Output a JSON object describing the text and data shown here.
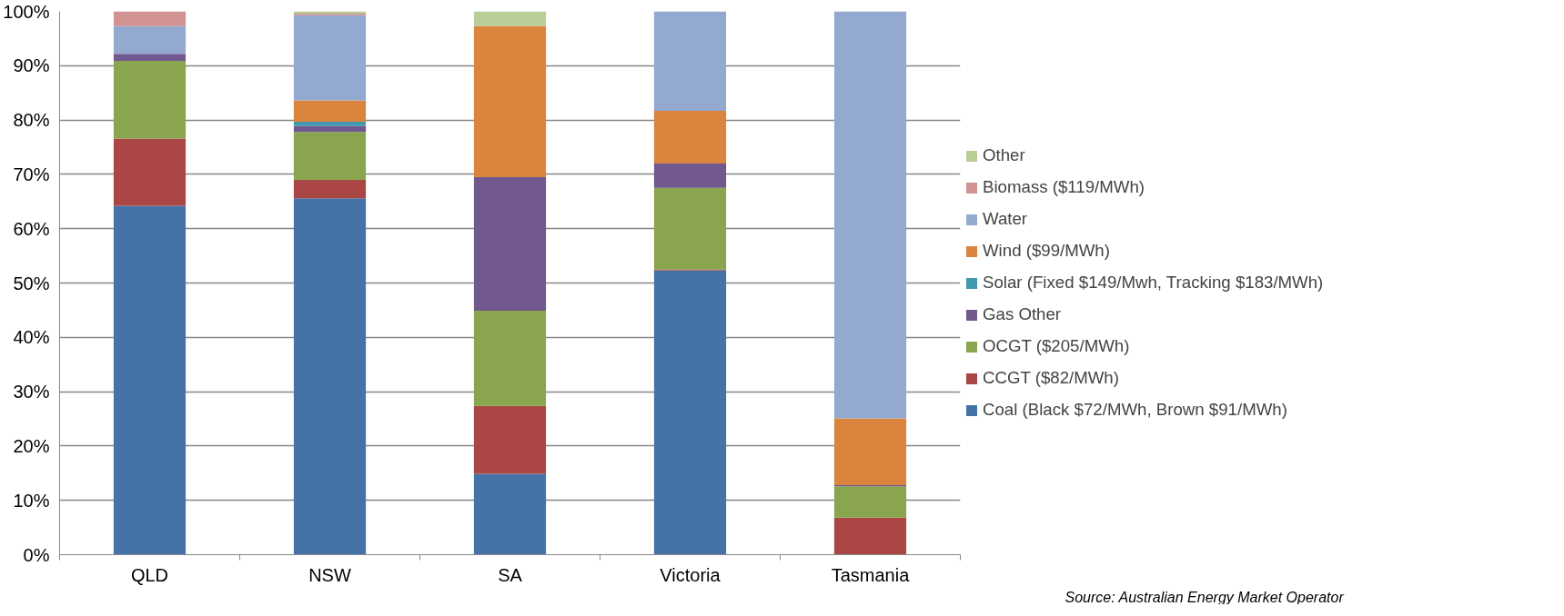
{
  "chart_data": {
    "type": "bar",
    "stacked": true,
    "categories": [
      "QLD",
      "NSW",
      "SA",
      "Victoria",
      "Tasmania"
    ],
    "series": [
      {
        "name": "Coal (Black $72/MWh, Brown $91/MWh)",
        "color": "#4572a7",
        "values": [
          64.2,
          65.6,
          14.9,
          52.3,
          0
        ]
      },
      {
        "name": "CCGT ($82/MWh)",
        "color": "#aa4643",
        "values": [
          12.4,
          3.4,
          12.5,
          0.2,
          6.8
        ]
      },
      {
        "name": "OCGT ($205/MWh)",
        "color": "#89a54e",
        "values": [
          14.3,
          8.8,
          17.5,
          15.0,
          5.8
        ]
      },
      {
        "name": "Gas Other",
        "color": "#71588f",
        "values": [
          1.3,
          1.1,
          24.6,
          4.5,
          0.2
        ]
      },
      {
        "name": "Solar (Fixed $149/Mwh, Tracking $183/MWh)",
        "color": "#4198af",
        "values": [
          0,
          0.8,
          0,
          0,
          0
        ]
      },
      {
        "name": "Wind ($99/MWh)",
        "color": "#db843d",
        "values": [
          0,
          3.9,
          27.8,
          9.7,
          12.3
        ]
      },
      {
        "name": "Water",
        "color": "#93a9cf",
        "values": [
          5.1,
          15.7,
          0,
          18.3,
          74.9
        ]
      },
      {
        "name": "Biomass ($119/MWh)",
        "color": "#d19392",
        "values": [
          2.7,
          0.3,
          0,
          0,
          0
        ]
      },
      {
        "name": "Other",
        "color": "#b9cd96",
        "values": [
          0,
          0.4,
          2.7,
          0,
          0
        ]
      }
    ],
    "ylim": [
      0,
      100
    ],
    "yticks": [
      {
        "value": 0,
        "label": "0%"
      },
      {
        "value": 10,
        "label": "10%"
      },
      {
        "value": 20,
        "label": "20%"
      },
      {
        "value": 30,
        "label": "30%"
      },
      {
        "value": 40,
        "label": "40%"
      },
      {
        "value": 50,
        "label": "50%"
      },
      {
        "value": 60,
        "label": "60%"
      },
      {
        "value": 70,
        "label": "70%"
      },
      {
        "value": 80,
        "label": "80%"
      },
      {
        "value": 90,
        "label": "90%"
      },
      {
        "value": 100,
        "label": "100%"
      }
    ],
    "grid": "y",
    "legend": "right",
    "annotations": [
      "Source: Australian Energy Market Operator"
    ]
  }
}
